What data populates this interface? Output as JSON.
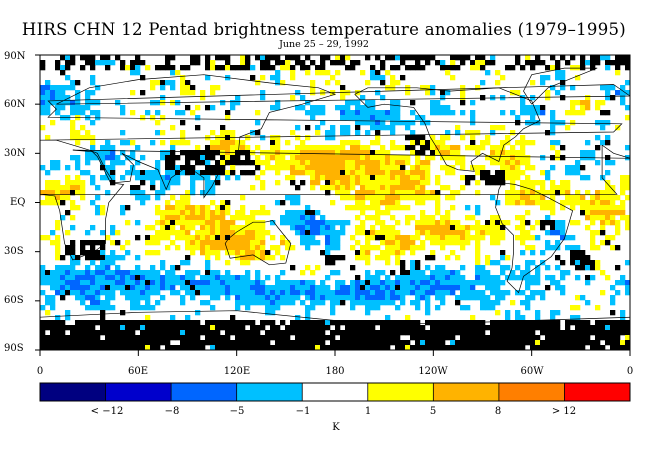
{
  "title": "HIRS CHN 12 Pentad brightness temperature anomalies (1979–1995)",
  "subtitle": "June 25 – 29, 1992",
  "lat_labels": [
    "90N",
    "60N",
    "30N",
    "EQ",
    "30S",
    "60S",
    "90S"
  ],
  "lon_labels": [
    "0",
    "60E",
    "120E",
    "180",
    "120W",
    "60W",
    "0"
  ],
  "colorbar": {
    "labels": [
      "< −12",
      "−8",
      "−5",
      "−1",
      "1",
      "5",
      "8",
      "> 12"
    ],
    "unit": "K",
    "colors": [
      "#000080",
      "#0000cc",
      "#0066ff",
      "#00c0ff",
      "#ffffff",
      "#ffff00",
      "#ffb300",
      "#ff7f00",
      "#ff0000"
    ]
  },
  "map_colors": {
    "cold_light": "#00c0ff",
    "cold_mid": "#0066ff",
    "warm_light": "#ffff00",
    "warm_mid": "#ffb300",
    "missing": "#000000"
  }
}
